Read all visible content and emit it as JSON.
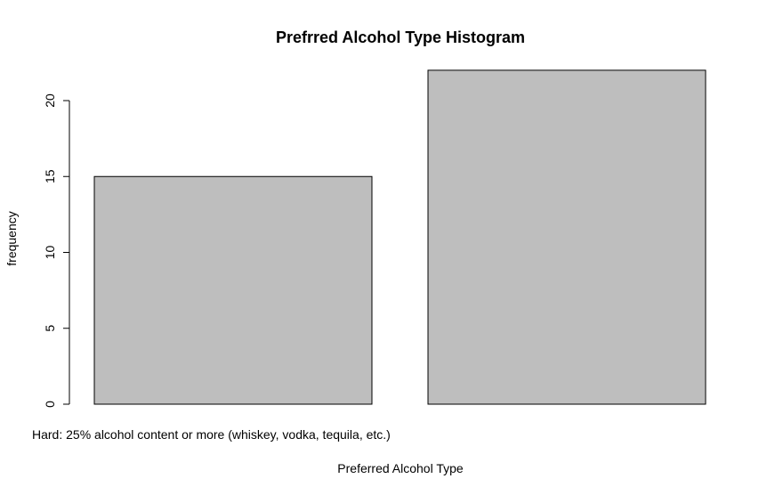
{
  "chart_data": {
    "type": "bar",
    "title": "Prefrred Alcohol Type Histogram",
    "xlabel": "Preferred Alcohol Type",
    "ylabel": "frequency",
    "categories": [
      "",
      ""
    ],
    "values": [
      15,
      22
    ],
    "yticks": [
      0,
      5,
      10,
      15,
      20
    ],
    "ylim": [
      0,
      22
    ],
    "bar_color": "#bebebe",
    "bar_border": "#000000",
    "annotation": "Hard: 25% alcohol content or more (whiskey, vodka, tequila, etc.)",
    "grid": false,
    "legend": "none"
  }
}
